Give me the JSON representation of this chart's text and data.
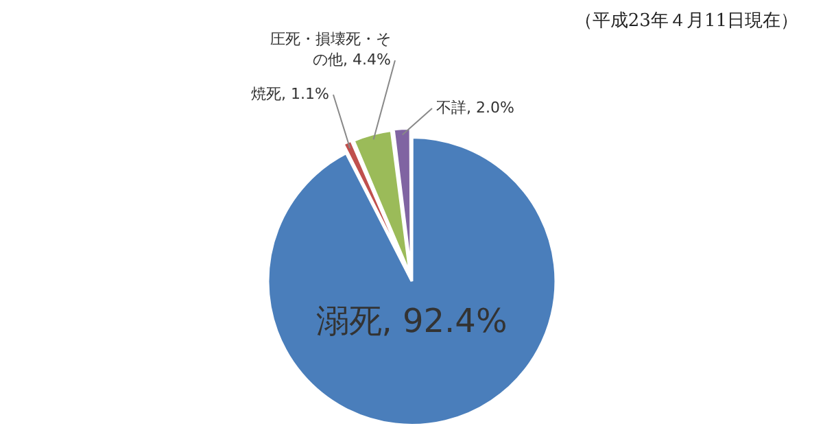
{
  "chart_data": {
    "type": "pie",
    "categories": [
      "溺死",
      "焼死",
      "圧死・損壊死・その他",
      "不詳"
    ],
    "values": [
      92.4,
      1.1,
      4.4,
      2.0
    ],
    "colors": [
      "#4a7ebb",
      "#c0504d",
      "#9bbb59",
      "#8064a2"
    ],
    "value_labels": [
      "92.4%",
      "1.1%",
      "4.4%",
      "2.0%"
    ],
    "legend": false,
    "annotations": [
      "（平成23年４月11日現在）"
    ]
  }
}
